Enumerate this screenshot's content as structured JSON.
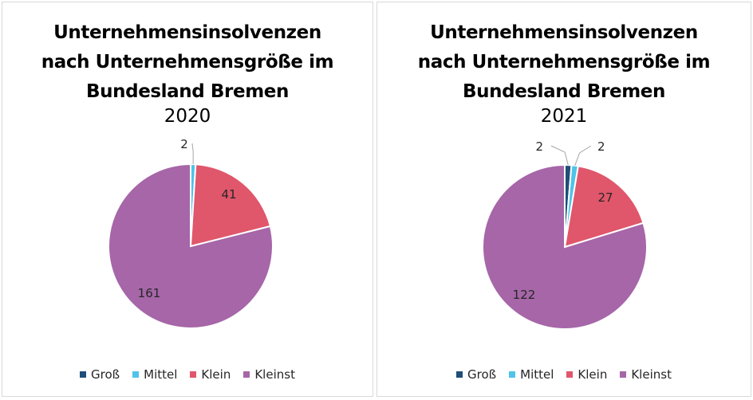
{
  "colors": {
    "Groß": "#1f4e79",
    "Mittel": "#4fc3e8",
    "Klein": "#e0566b",
    "Kleinst": "#a666a8"
  },
  "legend": [
    "Groß",
    "Mittel",
    "Klein",
    "Kleinst"
  ],
  "chart_data": [
    {
      "type": "pie",
      "title": "Unternehmensinsolvenzen nach Unternehmensgröße im Bundesland Bremen",
      "subtitle": "2020",
      "categories": [
        "Groß",
        "Mittel",
        "Klein",
        "Kleinst"
      ],
      "values": [
        0,
        2,
        41,
        161
      ],
      "data_labels": [
        "",
        "2",
        "41",
        "161"
      ],
      "legend_position": "bottom"
    },
    {
      "type": "pie",
      "title": "Unternehmensinsolvenzen nach Unternehmensgröße im Bundesland Bremen",
      "subtitle": "2021",
      "categories": [
        "Groß",
        "Mittel",
        "Klein",
        "Kleinst"
      ],
      "values": [
        2,
        2,
        27,
        122
      ],
      "data_labels": [
        "2",
        "2",
        "27",
        "122"
      ],
      "legend_position": "bottom"
    }
  ]
}
